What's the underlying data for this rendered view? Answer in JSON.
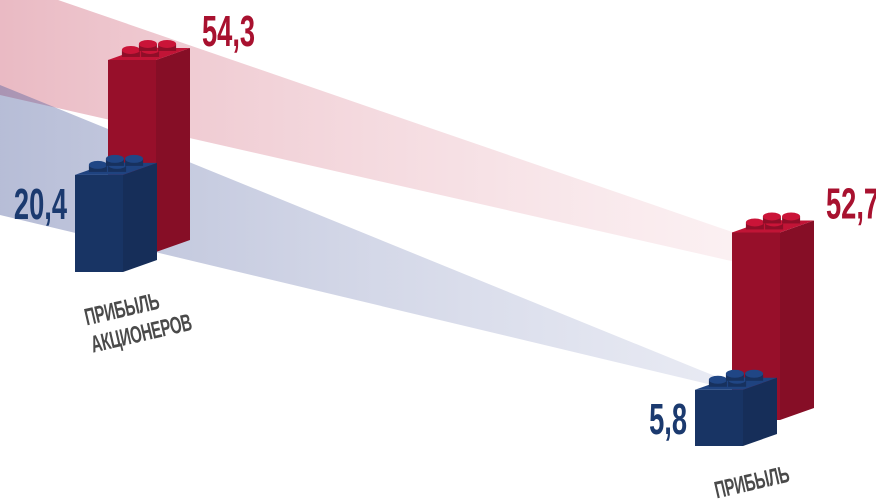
{
  "chart_data": {
    "type": "bar",
    "categories": [
      "ПРИБЫЛЬ\nАКЦИОНЕРОВ",
      "ПРИБЫЛЬ"
    ],
    "series": [
      {
        "color": "#a8112f",
        "values": [
          54.3,
          52.7
        ],
        "value_labels": [
          "54,3",
          "52,7"
        ]
      },
      {
        "color": "#1b3a6f",
        "values": [
          20.4,
          5.8
        ],
        "value_labels": [
          "20,4",
          "5,8"
        ]
      }
    ]
  }
}
